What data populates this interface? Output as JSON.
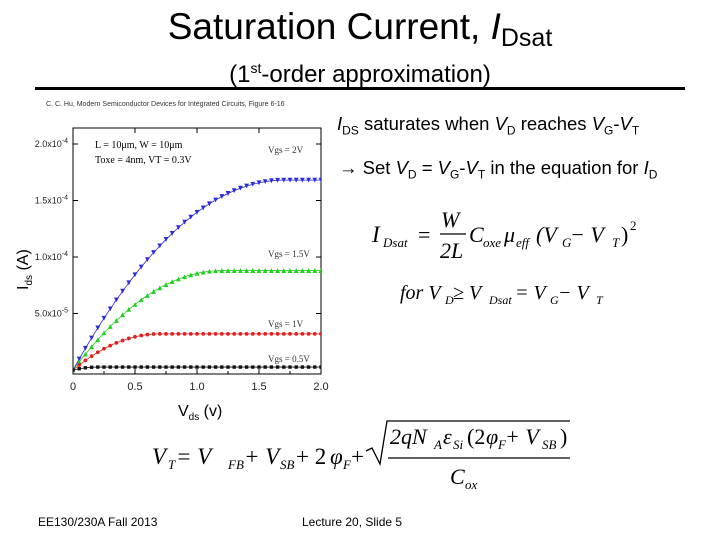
{
  "slide": {
    "title_main": "Saturation Current, ",
    "title_italic": "I",
    "title_sub": "Dsat",
    "subtitle_pre": "(1",
    "subtitle_sup": "st",
    "subtitle_post": "-order approximation)",
    "citation": "C. C. Hu, Modern Semiconductor Devices for Integrated Circuits, Figure 6-16",
    "bullet1": {
      "I": "I",
      "DS": "DS",
      "t1": " saturates when ",
      "V": "V",
      "D": "D",
      "t2": " reaches ",
      "VG": "V",
      "G": "G",
      "dash": "-",
      "VT": "V",
      "T": "T"
    },
    "bullet2": {
      "arrow": "→",
      "t1": " Set ",
      "V": "V",
      "D": "D",
      "eq": " = ",
      "VG": "V",
      "G": "G",
      "dash": "-",
      "VT": "V",
      "T": "T",
      "t2": " in the equation for ",
      "I": "I",
      "Dsub": "D"
    },
    "eq1": {
      "lhs": "I",
      "lhs_sub": "Dsat",
      "equals": "=",
      "num": "W",
      "den": "2L",
      "C": "C",
      "C_sub": "oxe",
      "mu": "μ",
      "mu_sub": "eff",
      "paren": "(V",
      "G_sub": "G",
      "minus": " − V",
      "T_sub": "T",
      "close": ")",
      "sq": "2"
    },
    "eq2": {
      "for": "for V",
      "D_sub": "D",
      "ge": " ≥ V",
      "Dsat_sub": "Dsat",
      "eq": " = V",
      "G_sub": "G",
      "minus": " − V",
      "T_sub": "T"
    },
    "eq3": {
      "VT": "V",
      "T_sub": "T",
      "eq": " = V",
      "FB_sub": "FB",
      "plus": " + V",
      "SB_sub": "SB",
      "plus2": " + 2",
      "phi": "φ",
      "F_sub": "F",
      "plus3": " + ",
      "num": "2qN",
      "A_sub": "A",
      "eps": "ε",
      "Si_sub": "Si",
      "paren": "(2",
      "phi2": "φ",
      "F2_sub": "F",
      "plusv": " + V",
      "SB2_sub": "SB",
      "close": ")",
      "den": "C",
      "ox_sub": "ox"
    },
    "footer_course": "EE130/230A  Fall 2013",
    "footer_lecture": "Lecture 20, Slide 5"
  },
  "chart_data": {
    "type": "line",
    "xlabel": "V",
    "xlabel_sub": "ds",
    "xlabel_unit": " (v)",
    "ylabel": "I",
    "ylabel_sub": "ds",
    "ylabel_unit": " (A)",
    "xlim": [
      0,
      2.0
    ],
    "ylim": [
      0,
      0.0002
    ],
    "x_ticks": [
      "0",
      "0.5",
      "1.0",
      "1.5",
      "2.0"
    ],
    "x_tick_values": [
      0,
      0.5,
      1.0,
      1.5,
      2.0
    ],
    "y_ticks": [
      "2.0x10-4",
      "1.5x10-4",
      "1.0x10-4",
      "5.0x10-5"
    ],
    "y_tick_values": [
      0.0002,
      0.00015,
      0.0001,
      5e-05
    ],
    "params": [
      "L = 10μm, W = 10μm",
      "Toxe = 4nm, VT = 0.3V"
    ],
    "series": [
      {
        "name": "Vgs = 2V",
        "color": "#2b2bdb",
        "marker": "triangle-down",
        "vdsat": 1.7,
        "isat": 0.000168
      },
      {
        "name": "Vgs = 1.5V",
        "color": "#1fd11f",
        "marker": "triangle-up",
        "vdsat": 1.2,
        "isat": 8.8e-05
      },
      {
        "name": "Vgs = 1V",
        "color": "#e02020",
        "marker": "circle",
        "vdsat": 0.7,
        "isat": 3.2e-05
      },
      {
        "name": "Vgs = 0.5V",
        "color": "#111111",
        "marker": "square",
        "vdsat": 0.2,
        "isat": 2.6e-06
      }
    ]
  }
}
